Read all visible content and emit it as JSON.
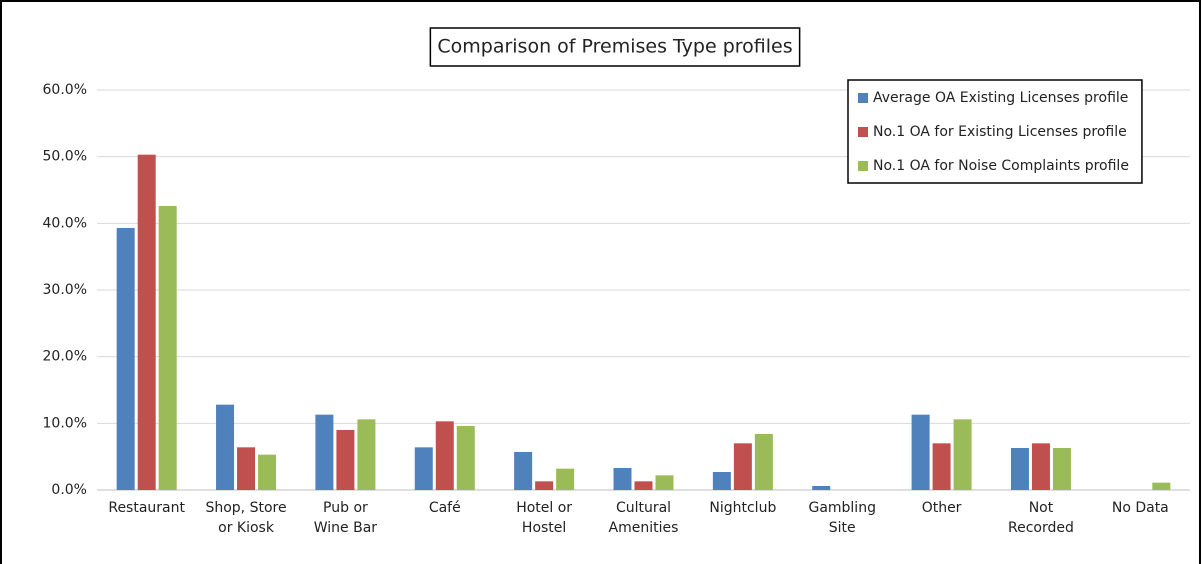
{
  "chart_data": {
    "type": "bar",
    "title": "Comparison of Premises Type profiles",
    "categories": [
      "Restaurant",
      "Shop, Store\nor Kiosk",
      "Pub or\nWine Bar",
      "Café",
      "Hotel or\nHostel",
      "Cultural\nAmenities",
      "Nightclub",
      "Gambling\nSite",
      "Other",
      "Not\nRecorded",
      "No Data"
    ],
    "series": [
      {
        "name": "Average OA Existing Licenses profile",
        "color": "#4f81bd",
        "values": [
          39.3,
          12.8,
          11.3,
          6.4,
          5.7,
          3.3,
          2.7,
          0.6,
          11.3,
          6.3,
          0
        ]
      },
      {
        "name": "No.1 OA for Existing Licenses profile",
        "color": "#c0504d",
        "values": [
          50.3,
          6.4,
          9.0,
          10.3,
          1.3,
          1.3,
          7.0,
          0,
          7.0,
          7.0,
          0
        ]
      },
      {
        "name": "No.1 OA for Noise Complaints profile",
        "color": "#9bbb59",
        "values": [
          42.6,
          5.3,
          10.6,
          9.6,
          3.2,
          2.2,
          8.4,
          0,
          10.6,
          6.3,
          1.1
        ]
      }
    ],
    "ylim": [
      0,
      60
    ],
    "yticks": [
      {
        "value": 0,
        "label": "0.0%"
      },
      {
        "value": 10,
        "label": "10.0%"
      },
      {
        "value": 20,
        "label": "20.0%"
      },
      {
        "value": 30,
        "label": "30.0%"
      },
      {
        "value": 40,
        "label": "40.0%"
      },
      {
        "value": 50,
        "label": "50.0%"
      },
      {
        "value": 60,
        "label": "60.0%"
      }
    ],
    "grid": true,
    "legend": "top-right"
  }
}
